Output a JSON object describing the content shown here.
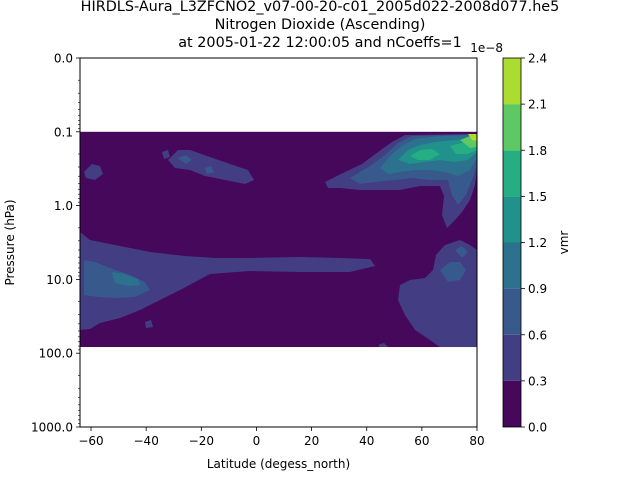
{
  "figure": {
    "title_lines": [
      "HIRDLS-Aura_L3ZFCNO2_v07-00-20-c01_2005d022-2008d077.he5",
      "Nitrogen Dioxide (Ascending)",
      "at 2005-01-22 12:00:05 and nCoeffs=1"
    ]
  },
  "chart_data": {
    "type": "heatmap",
    "xlabel": "Latitude (degess_north)",
    "ylabel": "Pressure (hPa)",
    "xlim": [
      -64,
      80
    ],
    "x_ticks": [
      -60,
      -40,
      -20,
      0,
      20,
      40,
      60,
      80
    ],
    "x_tick_labels": [
      "−60",
      "−40",
      "−20",
      "0",
      "20",
      "40",
      "60",
      "80"
    ],
    "y_scale": "log",
    "ylim": [
      1000.0,
      0.01
    ],
    "y_ticks": [
      0.01,
      0.1,
      1.0,
      10.0,
      100.0,
      1000.0
    ],
    "y_tick_labels": [
      "0.0",
      "0.1",
      "1.0",
      "10.0",
      "100.0",
      "1000.0"
    ],
    "data_extent": {
      "lat": [
        -64,
        80
      ],
      "pressure": [
        0.1,
        82.5
      ]
    },
    "colorbar": {
      "label": "vmr",
      "offset_text": "1e−8",
      "levels": [
        0.0,
        0.3,
        0.6,
        0.9,
        1.2,
        1.5,
        1.8,
        2.1,
        2.4
      ],
      "tick_labels": [
        "0.0",
        "0.3",
        "0.6",
        "0.9",
        "1.2",
        "1.5",
        "1.8",
        "2.1",
        "2.4"
      ],
      "colors": [
        "#45085b",
        "#433d84",
        "#38598c",
        "#2c718e",
        "#21918c",
        "#26ad81",
        "#5ec962",
        "#addc30",
        "#dde318"
      ]
    },
    "regions": [
      {
        "name": "mid-latitude band",
        "level": 1,
        "approx_lat_range": [
          -64,
          43
        ],
        "approx_pressure_range": [
          2.5,
          60
        ]
      },
      {
        "name": "northern upper band",
        "level": 1,
        "approx_lat_range": [
          25,
          80
        ],
        "approx_pressure_range": [
          0.1,
          1.5
        ]
      },
      {
        "name": "northern upper core",
        "level": 3,
        "approx_lat_range": [
          50,
          78
        ],
        "approx_pressure_range": [
          0.12,
          0.6
        ]
      },
      {
        "name": "northern high-latitude maximum",
        "level": 7,
        "approx_lat_range": [
          75,
          80
        ],
        "approx_pressure_range": [
          0.1,
          0.15
        ]
      },
      {
        "name": "southern upper patch",
        "level": 1,
        "approx_lat_range": [
          -27,
          -3
        ],
        "approx_pressure_range": [
          0.15,
          0.5
        ]
      },
      {
        "name": "northern lower patch",
        "level": 1,
        "approx_lat_range": [
          64,
          80
        ],
        "approx_pressure_range": [
          3,
          60
        ]
      }
    ]
  }
}
